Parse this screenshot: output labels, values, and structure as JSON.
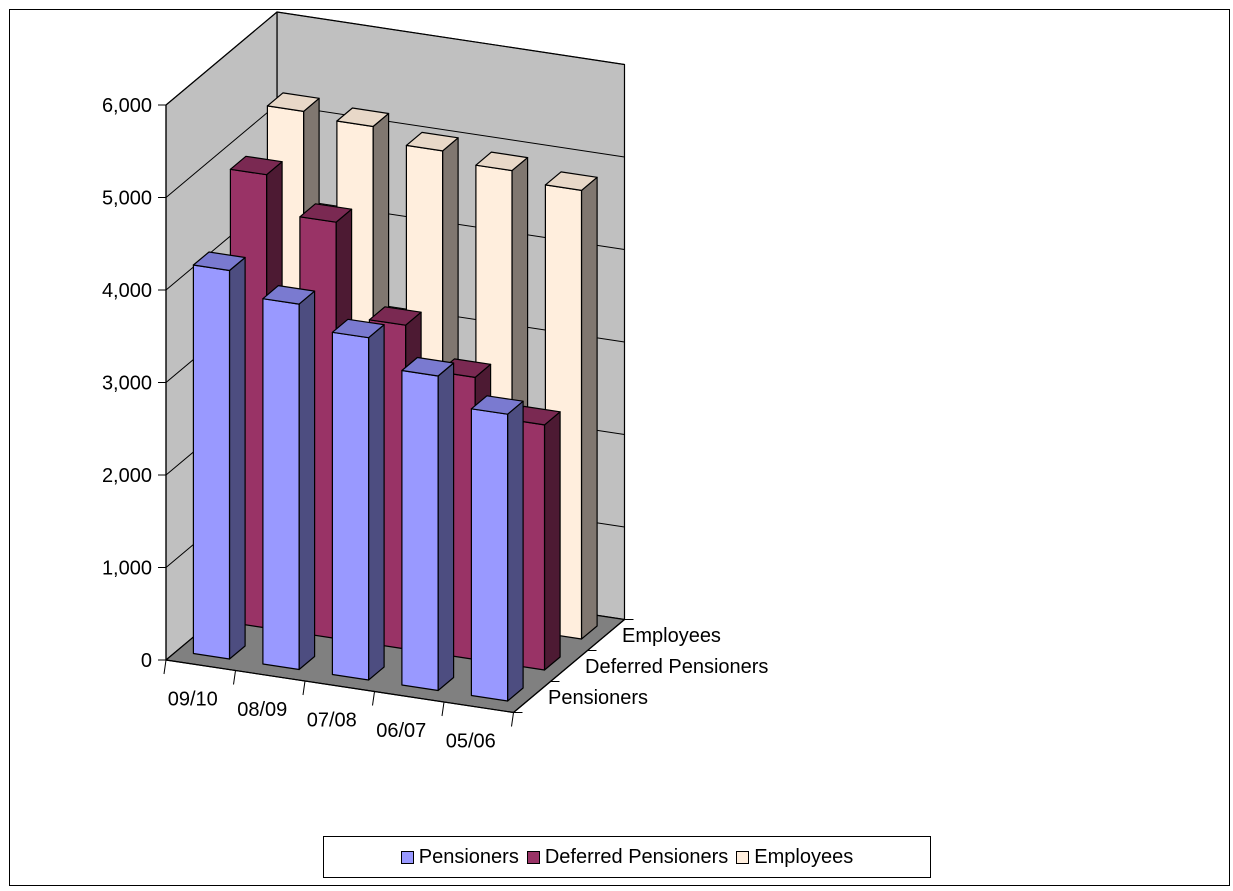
{
  "chart_data": {
    "type": "bar",
    "subtype": "3d-clustered-column",
    "categories": [
      "09/10",
      "08/09",
      "07/08",
      "06/07",
      "05/06"
    ],
    "series": [
      {
        "name": "Pensioners",
        "values": [
          4200,
          3950,
          3700,
          3400,
          3100
        ],
        "color": "#9999ff"
      },
      {
        "name": "Deferred Pensioners",
        "values": [
          4900,
          4500,
          3500,
          3050,
          2650
        ],
        "color": "#993366"
      },
      {
        "name": "Employees",
        "values": [
          5250,
          5200,
          5050,
          4950,
          4850
        ],
        "color": "#ffeedd"
      }
    ],
    "yticks": [
      "0",
      "1,000",
      "2,000",
      "3,000",
      "4,000",
      "5,000",
      "6,000"
    ],
    "ylim": [
      0,
      6000
    ],
    "grid": true,
    "legend": "bottom",
    "title": "",
    "xlabel": "",
    "ylabel": ""
  }
}
